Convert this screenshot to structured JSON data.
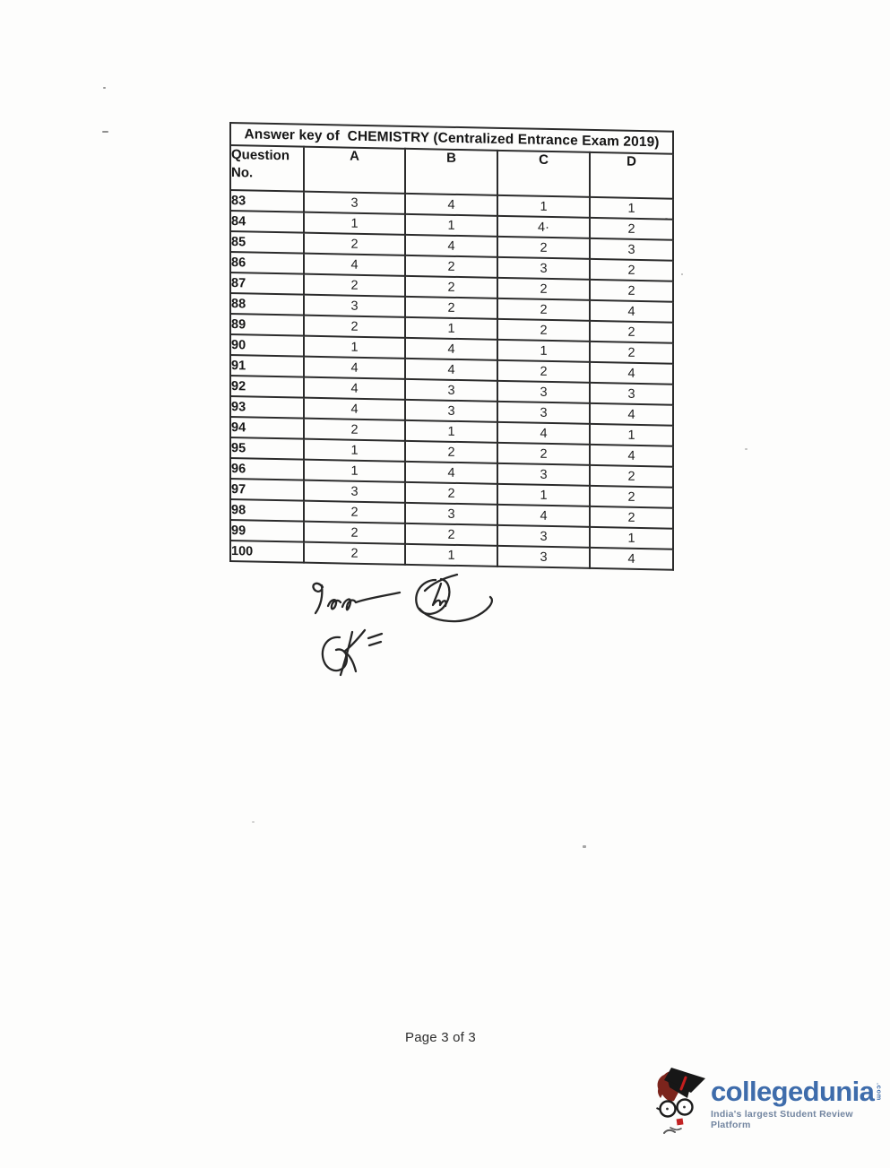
{
  "document": {
    "table": {
      "title": "Answer key of  CHEMISTRY (Centralized Entrance Exam 2019)",
      "header": {
        "question_line1": "Question",
        "question_line2": "No.",
        "col_a": "A",
        "col_b": "B",
        "col_c": "C",
        "col_d": "D"
      },
      "rows": [
        [
          "83",
          "3",
          "4",
          "1",
          "1"
        ],
        [
          "84",
          "1",
          "1",
          "4·",
          "2"
        ],
        [
          "85",
          "2",
          "4",
          "2",
          "3"
        ],
        [
          "86",
          "4",
          "2",
          "3",
          "2"
        ],
        [
          "87",
          "2",
          "2",
          "2",
          "2"
        ],
        [
          "88",
          "3",
          "2",
          "2",
          "4"
        ],
        [
          "89",
          "2",
          "1",
          "2",
          "2"
        ],
        [
          "90",
          "1",
          "4",
          "1",
          "2"
        ],
        [
          "91",
          "4",
          "4",
          "2",
          "4"
        ],
        [
          "92",
          "4",
          "3",
          "3",
          "3"
        ],
        [
          "93",
          "4",
          "3",
          "3",
          "4"
        ],
        [
          "94",
          "2",
          "1",
          "4",
          "1"
        ],
        [
          "95",
          "1",
          "2",
          "2",
          "4"
        ],
        [
          "96",
          "1",
          "4",
          "3",
          "2"
        ],
        [
          "97",
          "3",
          "2",
          "1",
          "2"
        ],
        [
          "98",
          "2",
          "3",
          "4",
          "2"
        ],
        [
          "99",
          "2",
          "2",
          "3",
          "1"
        ],
        [
          "100",
          "2",
          "1",
          "3",
          "4"
        ]
      ]
    },
    "signatures": [
      "handwritten-signature-1",
      "handwritten-signature-2",
      "handwritten-signature-3"
    ],
    "footer": {
      "page_label": "Page 3 of 3"
    },
    "branding": {
      "brand": "collegedunia",
      "brand_suffix": ".com",
      "tagline": "India's largest Student Review Platform",
      "brand_color": "#3e6cab",
      "tagline_color": "#7285a0",
      "mascot": "student-mascot-icon"
    }
  }
}
